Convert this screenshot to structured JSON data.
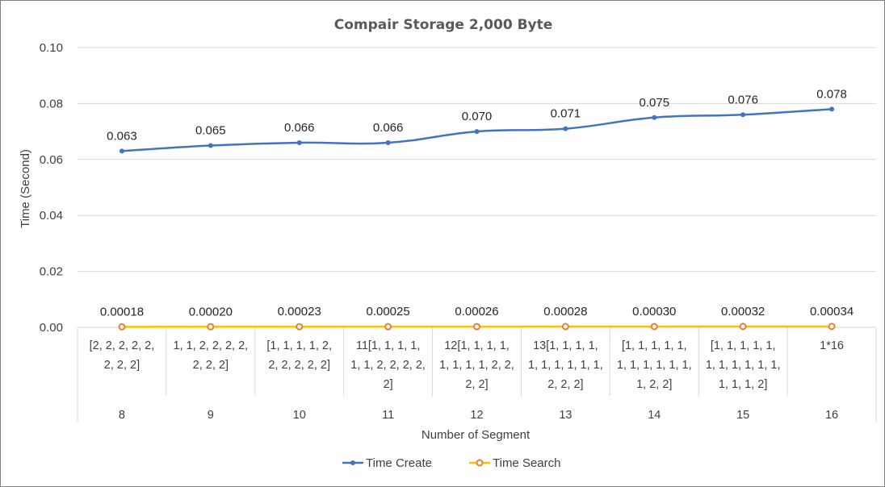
{
  "chart_data": {
    "type": "line",
    "title": "Compair Storage 2,000 Byte",
    "xlabel": "Number of Segment",
    "ylabel": "Time  (Second)",
    "ylim": [
      0,
      0.1
    ],
    "yticks": [
      "0.00",
      "0.02",
      "0.04",
      "0.06",
      "0.08",
      "0.10"
    ],
    "grid": true,
    "legend_position": "bottom",
    "categories": [
      {
        "group": "8",
        "lines": [
          "[2, 2, 2, 2, 2,",
          "2, 2, 2]"
        ]
      },
      {
        "group": "9",
        "lines": [
          "1, 1, 2, 2, 2, 2,",
          "2, 2, 2]"
        ]
      },
      {
        "group": "10",
        "lines": [
          "[1, 1, 1, 1, 2,",
          "2, 2, 2, 2, 2]"
        ]
      },
      {
        "group": "11",
        "lines": [
          "11[1, 1, 1, 1,",
          "1, 1, 2, 2, 2, 2,",
          "2]"
        ]
      },
      {
        "group": "12",
        "lines": [
          "12[1, 1, 1, 1,",
          "1, 1, 1, 1, 2, 2,",
          "2, 2]"
        ]
      },
      {
        "group": "13",
        "lines": [
          "13[1, 1, 1, 1,",
          "1, 1, 1, 1, 1, 1,",
          "2, 2, 2]"
        ]
      },
      {
        "group": "14",
        "lines": [
          "[1, 1, 1, 1, 1,",
          "1, 1, 1, 1, 1, 1,",
          "1, 2, 2]"
        ]
      },
      {
        "group": "15",
        "lines": [
          "[1, 1, 1, 1, 1,",
          "1, 1, 1, 1, 1, 1,",
          "1, 1, 1, 2]"
        ]
      },
      {
        "group": "16",
        "lines": [
          "1*16"
        ]
      }
    ],
    "series": [
      {
        "name": "Time Create",
        "color": "#4472C4",
        "values": [
          0.063,
          0.065,
          0.066,
          0.066,
          0.07,
          0.071,
          0.075,
          0.076,
          0.078
        ],
        "labels": [
          "0.063",
          "0.065",
          "0.066",
          "0.066",
          "0.070",
          "0.071",
          "0.075",
          "0.076",
          "0.078"
        ]
      },
      {
        "name": "Time Search",
        "color": "#ED7D31",
        "line_color": "#FFC000",
        "values": [
          0.00018,
          0.0002,
          0.00023,
          0.00025,
          0.00026,
          0.00028,
          0.0003,
          0.00032,
          0.00034
        ],
        "labels": [
          "0.00018",
          "0.00020",
          "0.00023",
          "0.00025",
          "0.00026",
          "0.00028",
          "0.00030",
          "0.00032",
          "0.00034"
        ]
      }
    ]
  }
}
